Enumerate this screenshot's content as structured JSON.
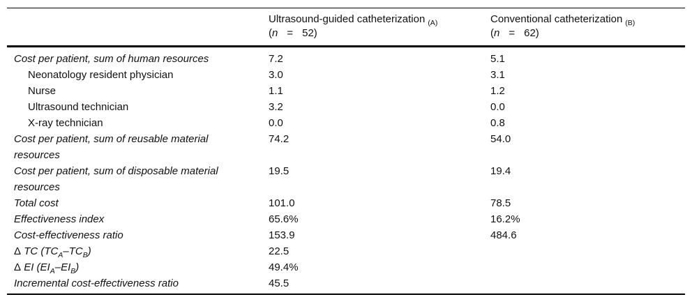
{
  "table": {
    "header": {
      "col_a": {
        "title": "Ultrasound-guided catheterization",
        "subscript": "(A)",
        "n_open": "(",
        "n_symbol": "n",
        "n_equals": "=",
        "n_value": "52)"
      },
      "col_b": {
        "title": "Conventional catheterization",
        "subscript": "(B)",
        "n_open": "(",
        "n_symbol": "n",
        "n_equals": "=",
        "n_value": "62)"
      }
    },
    "rows": [
      {
        "label": "Cost per patient, sum of human resources",
        "a": "7.2",
        "b": "5.1"
      },
      {
        "label": "Neonatology resident physician",
        "a": "3.0",
        "b": "3.1"
      },
      {
        "label": "Nurse",
        "a": "1.1",
        "b": "1.2"
      },
      {
        "label": "Ultrasound technician",
        "a": "3.2",
        "b": "0.0"
      },
      {
        "label": "X-ray technician",
        "a": "0.0",
        "b": "0.8"
      },
      {
        "label": "Cost per patient, sum of reusable material resources",
        "a": "74.2",
        "b": "54.0"
      },
      {
        "label": "Cost per patient, sum of disposable material resources",
        "a": "19.5",
        "b": "19.4"
      },
      {
        "label": "Total cost",
        "a": "101.0",
        "b": "78.5"
      },
      {
        "label": "Effectiveness index",
        "a": "65.6%",
        "b": "16.2%"
      },
      {
        "label": "Cost-effectiveness ratio",
        "a": "153.9",
        "b": "484.6"
      },
      {
        "parts": {
          "delta": "Δ",
          "p1": " TC (TC",
          "s1": "A",
          "p2": "–TC",
          "s2": "B",
          "p3": ")"
        },
        "a": "22.5",
        "b": ""
      },
      {
        "parts": {
          "delta": "Δ",
          "p1": " EI (EI",
          "s1": "A",
          "p2": "–EI",
          "s2": "B",
          "p3": ")"
        },
        "a": "49.4%",
        "b": ""
      },
      {
        "label": "Incremental cost-effectiveness ratio",
        "a": "45.5",
        "b": ""
      }
    ]
  }
}
